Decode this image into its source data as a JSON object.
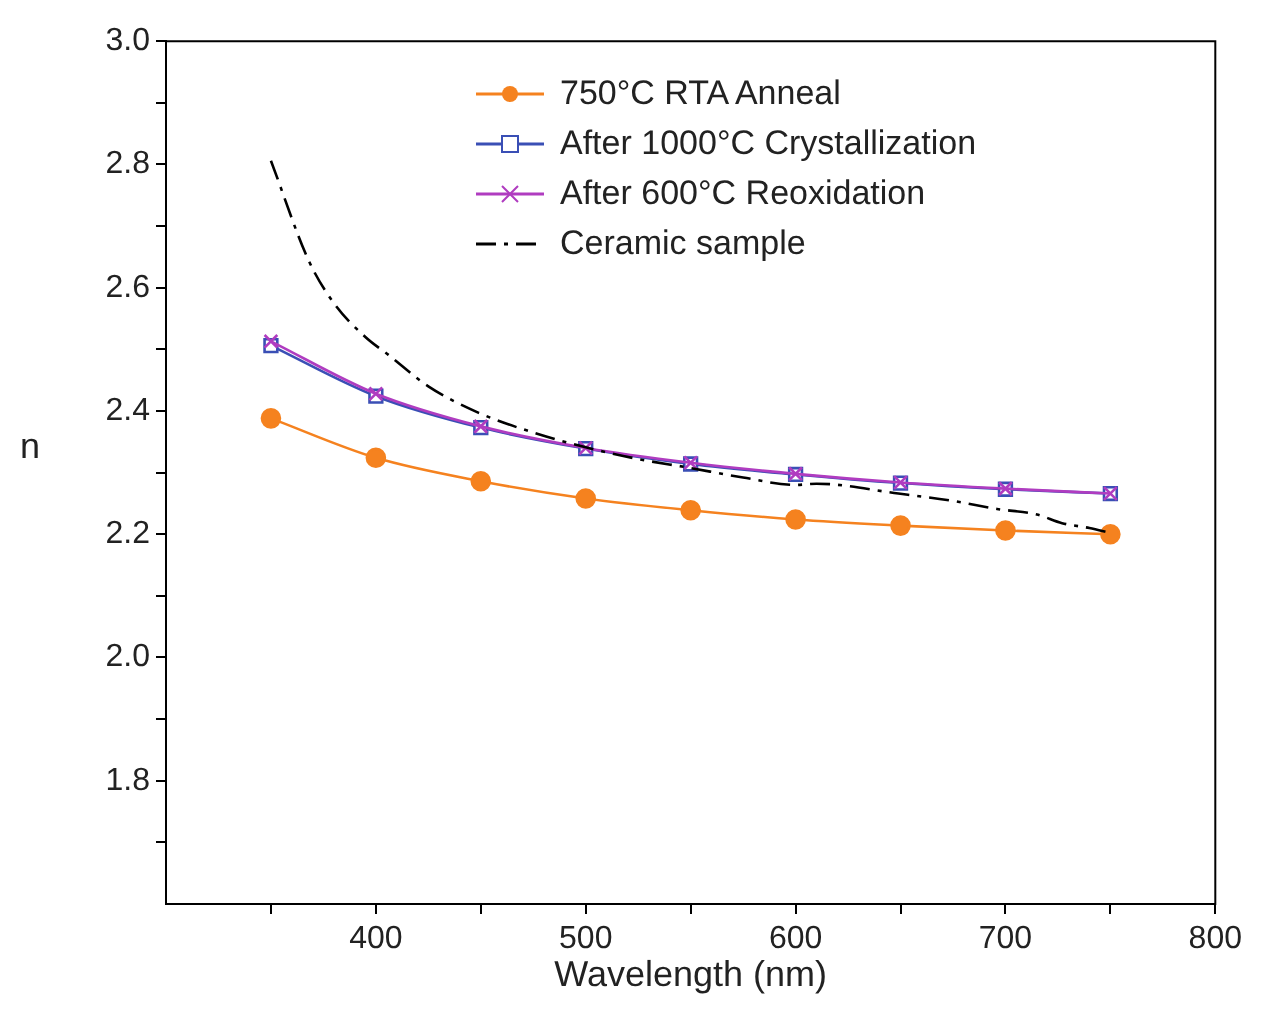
{
  "chart_data": {
    "type": "line",
    "xlabel": "Wavelength (nm)",
    "ylabel": "n",
    "xlim": [
      300,
      800
    ],
    "ylim": [
      1.6,
      3.0
    ],
    "xticks": [
      {
        "value": 350,
        "label": null
      },
      400,
      {
        "value": 450,
        "label": null
      },
      500,
      {
        "value": 550,
        "label": null
      },
      600,
      {
        "value": 650,
        "label": null
      },
      700,
      {
        "value": 750,
        "label": null
      },
      800
    ],
    "yticks": [
      {
        "value": 1.7,
        "label": null
      },
      1.8,
      {
        "value": 1.9,
        "label": null
      },
      {
        "value": 2.0,
        "label": "2.0"
      },
      {
        "value": 2.1,
        "label": null
      },
      2.2,
      {
        "value": 2.3,
        "label": null
      },
      2.4,
      {
        "value": 2.5,
        "label": null
      },
      2.6,
      {
        "value": 2.7,
        "label": null
      },
      2.8,
      {
        "value": 2.9,
        "label": null
      },
      {
        "value": 3.0,
        "label": "3.0"
      }
    ],
    "grid": false,
    "legend": "top",
    "series": [
      {
        "name": "750°C RTA Anneal",
        "color": "#f5821f",
        "marker": "circle",
        "line_style": "solid",
        "x": [
          350,
          400,
          450,
          500,
          550,
          600,
          650,
          700,
          750
        ],
        "values": [
          2.388,
          2.324,
          2.286,
          2.258,
          2.239,
          2.224,
          2.214,
          2.206,
          2.2
        ]
      },
      {
        "name": "After 1000°C Crystallization",
        "color": "#3a4fb5",
        "marker": "square",
        "line_style": "solid",
        "x": [
          350,
          400,
          450,
          500,
          550,
          600,
          650,
          700,
          750
        ],
        "values": [
          2.506,
          2.424,
          2.373,
          2.339,
          2.314,
          2.297,
          2.283,
          2.273,
          2.266
        ]
      },
      {
        "name": "After 600°C Reoxidation",
        "color": "#b03cc0",
        "marker": "cross",
        "line_style": "solid",
        "x": [
          350,
          400,
          450,
          500,
          550,
          600,
          650,
          700,
          750
        ],
        "values": [
          2.513,
          2.428,
          2.375,
          2.34,
          2.316,
          2.298,
          2.284,
          2.274,
          2.266
        ]
      },
      {
        "name": "Ceramic sample",
        "color": "#000000",
        "marker": "none",
        "line_style": "dashed",
        "x": [
          350,
          368,
          380,
          395,
          406,
          425,
          449,
          475,
          500,
          525,
          549,
          575,
          600,
          610,
          649,
          675,
          696,
          715,
          727,
          740,
          750
        ],
        "values": [
          2.806,
          2.644,
          2.575,
          2.52,
          2.491,
          2.44,
          2.397,
          2.365,
          2.341,
          2.322,
          2.308,
          2.292,
          2.28,
          2.282,
          2.266,
          2.254,
          2.241,
          2.232,
          2.218,
          2.21,
          2.202
        ]
      }
    ]
  }
}
